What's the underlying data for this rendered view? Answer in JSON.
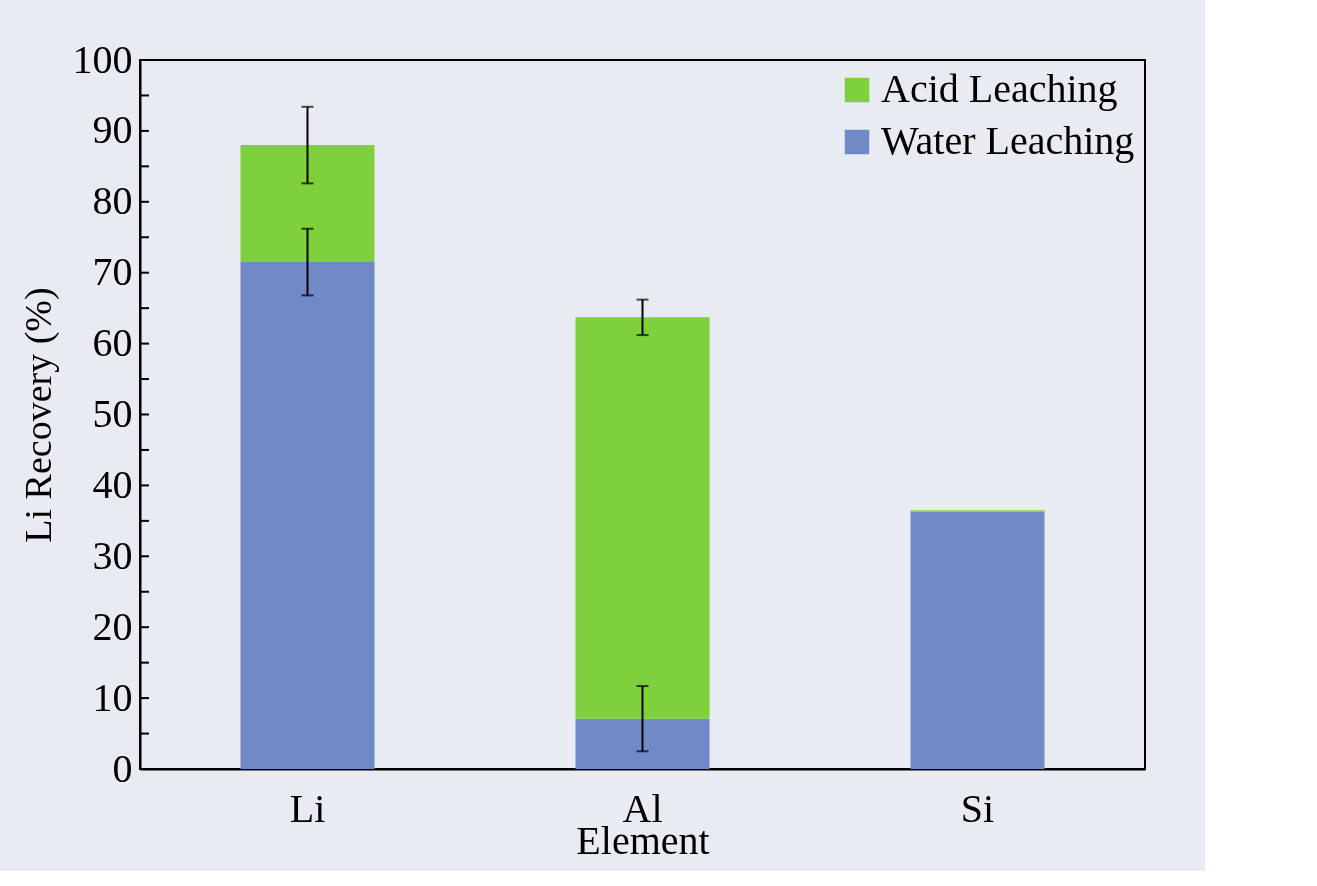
{
  "chart_data": {
    "type": "bar",
    "stacked": true,
    "xlabel": "Element",
    "ylabel": "Li Recovery (%)",
    "categories": [
      "Li",
      "Al",
      "Si"
    ],
    "series": [
      {
        "name": "Water Leaching",
        "color": "#7289c7",
        "values": [
          71.5,
          7.1,
          36.3
        ],
        "errors": [
          4.7,
          4.6,
          null
        ]
      },
      {
        "name": "Acid Leaching",
        "color": "#7ed13c",
        "values": [
          16.5,
          56.6,
          0.2
        ],
        "errors": [
          5.4,
          2.5,
          null
        ]
      }
    ],
    "ylim": [
      0,
      100
    ],
    "yticks": [
      0,
      {
        "value": 5,
        "label": null
      },
      10,
      {
        "value": 15,
        "label": null
      },
      20,
      {
        "value": 25,
        "label": null
      },
      30,
      {
        "value": 35,
        "label": null
      },
      40,
      {
        "value": 45,
        "label": null
      },
      50,
      {
        "value": 55,
        "label": null
      },
      60,
      {
        "value": 65,
        "label": null
      },
      70,
      {
        "value": 75,
        "label": null
      },
      80,
      {
        "value": 85,
        "label": null
      },
      90,
      {
        "value": 95,
        "label": null
      },
      100
    ],
    "grid": false,
    "legend": "top right"
  }
}
